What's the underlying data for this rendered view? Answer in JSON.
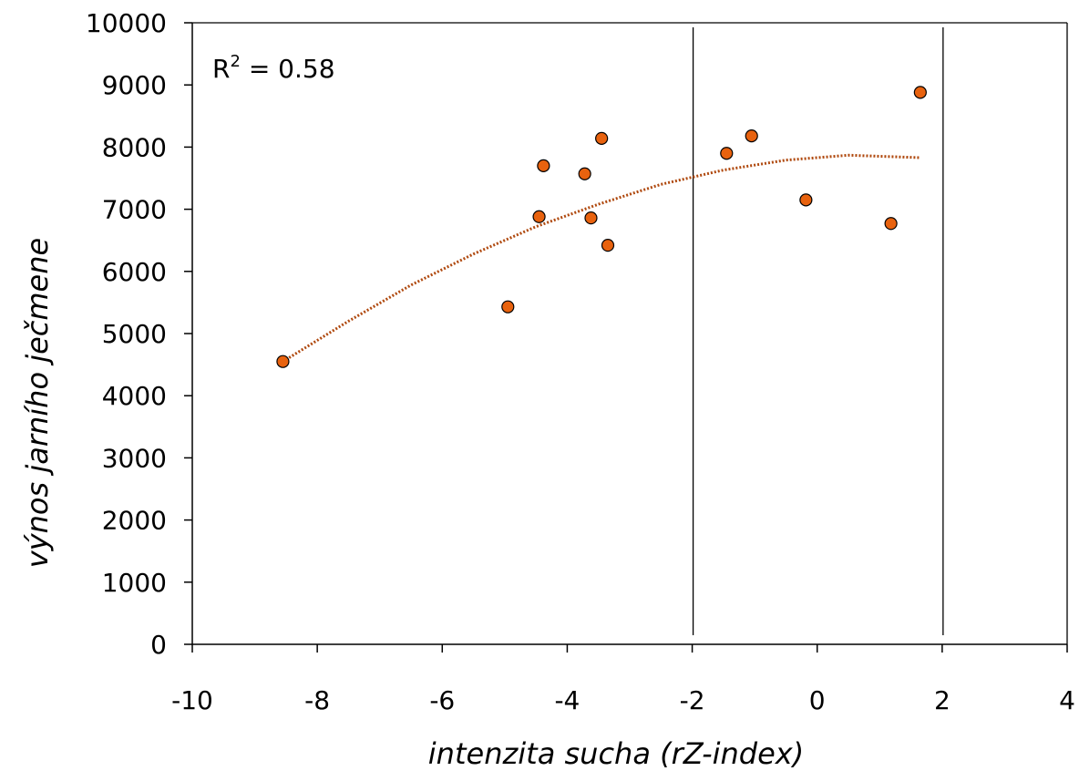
{
  "chart_data": {
    "type": "scatter",
    "xlabel": "intenzita sucha (rZ-index)",
    "ylabel": "výnos jarního ječmene",
    "xlim": [
      -10,
      4
    ],
    "ylim": [
      0,
      10000
    ],
    "x_ticks": [
      -10,
      -8,
      -6,
      -4,
      -2,
      0,
      2,
      4
    ],
    "y_ticks": [
      0,
      1000,
      2000,
      3000,
      4000,
      5000,
      6000,
      7000,
      8000,
      9000,
      10000
    ],
    "grid": false,
    "legend": "none",
    "annotation": {
      "label": "R",
      "superscript": "2",
      "text": " = 0.58"
    },
    "series": [
      {
        "color": "#E8620E",
        "points": [
          {
            "x": -8.55,
            "y": 4550
          },
          {
            "x": -4.95,
            "y": 5430
          },
          {
            "x": -4.45,
            "y": 6880
          },
          {
            "x": -4.38,
            "y": 7700
          },
          {
            "x": -3.72,
            "y": 7570
          },
          {
            "x": -3.62,
            "y": 6860
          },
          {
            "x": -3.45,
            "y": 8140
          },
          {
            "x": -3.35,
            "y": 6420
          },
          {
            "x": -1.45,
            "y": 7900
          },
          {
            "x": -1.05,
            "y": 8180
          },
          {
            "x": -0.18,
            "y": 7150
          },
          {
            "x": 1.18,
            "y": 6770
          },
          {
            "x": 1.65,
            "y": 8880
          }
        ]
      }
    ],
    "trendline": {
      "kind": "quadratic",
      "color": "#B04A10",
      "x_range": [
        -8.55,
        1.65
      ],
      "points": [
        {
          "x": -8.55,
          "y": 4550
        },
        {
          "x": -7.5,
          "y": 5200
        },
        {
          "x": -6.5,
          "y": 5780
        },
        {
          "x": -5.5,
          "y": 6280
        },
        {
          "x": -4.5,
          "y": 6720
        },
        {
          "x": -3.5,
          "y": 7080
        },
        {
          "x": -2.5,
          "y": 7400
        },
        {
          "x": -1.5,
          "y": 7630
        },
        {
          "x": -0.5,
          "y": 7790
        },
        {
          "x": 0.5,
          "y": 7870
        },
        {
          "x": 1.65,
          "y": 7830
        }
      ]
    },
    "reference_lines_x": [
      -2,
      2
    ]
  }
}
